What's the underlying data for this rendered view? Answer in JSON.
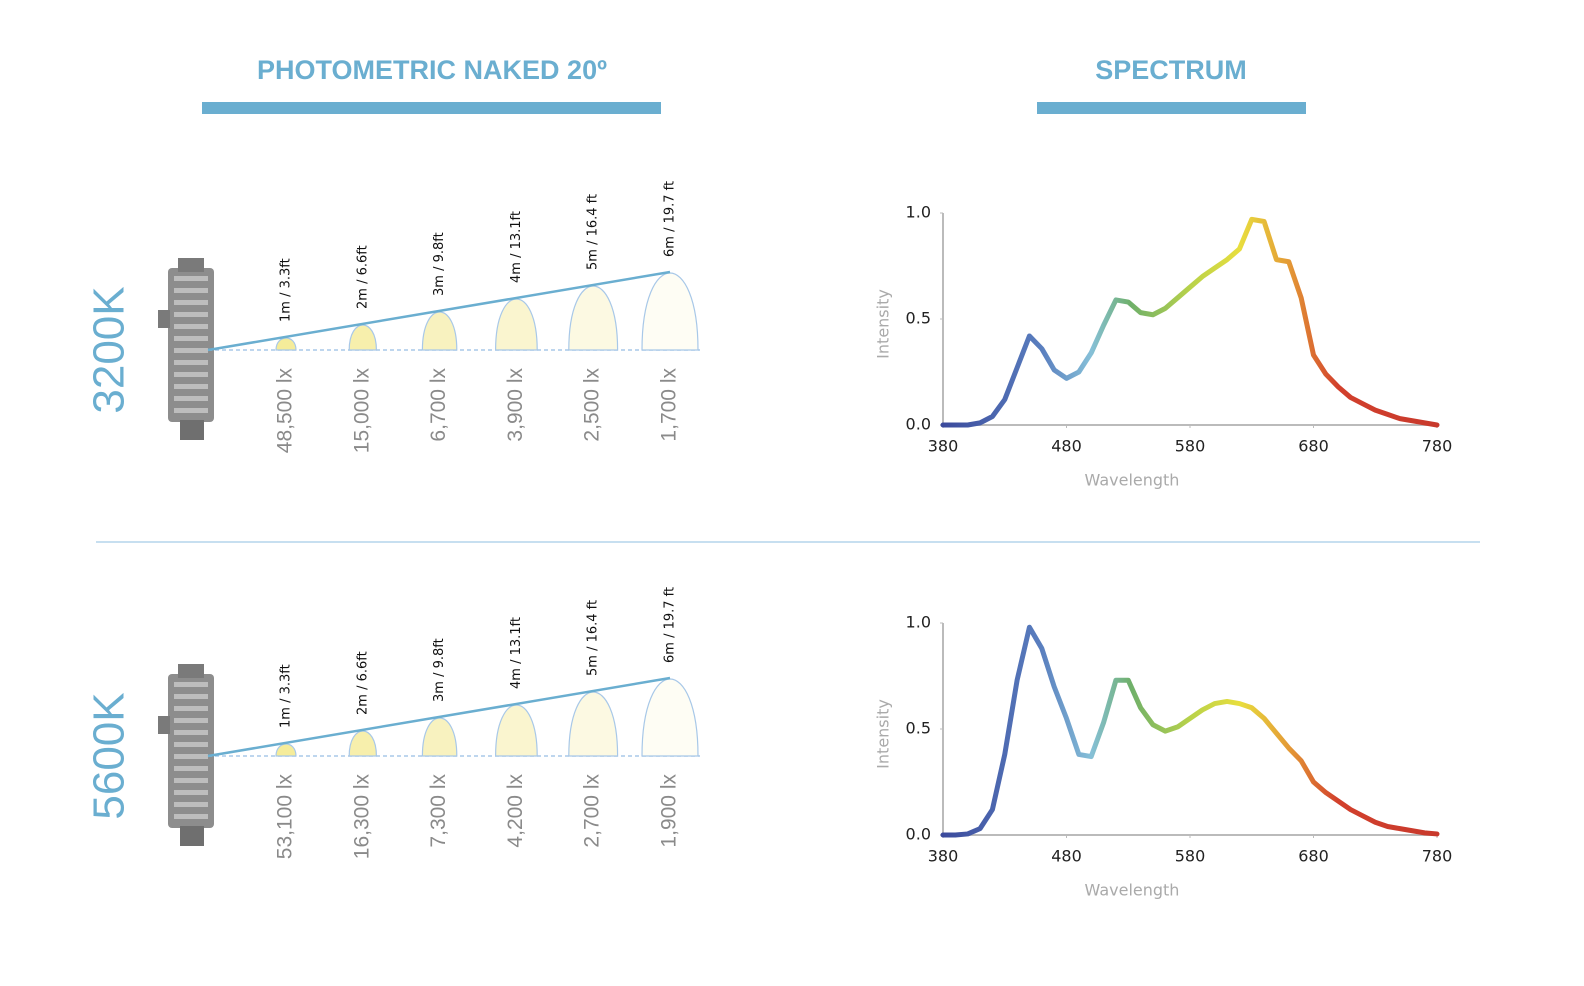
{
  "header": {
    "photometric_title": "PHOTOMETRIC NAKED 20º",
    "spectrum_title": "SPECTRUM"
  },
  "rows": [
    {
      "cct": "3200K",
      "distances": [
        "1m / 3.3ft",
        "2m / 6.6ft",
        "3m / 9.8ft",
        "4m / 13.1ft",
        "5m / 16.4 ft",
        "6m / 19.7 ft"
      ],
      "illuminance": [
        "48,500 lx",
        "15,000 lx",
        "6,700 lx",
        "3,900 lx",
        "2,500 lx",
        "1,700 lx"
      ]
    },
    {
      "cct": "5600K",
      "distances": [
        "1m / 3.3ft",
        "2m / 6.6ft",
        "3m / 9.8ft",
        "4m / 13.1ft",
        "5m / 16.4 ft",
        "6m / 19.7 ft"
      ],
      "illuminance": [
        "53,100 lx",
        "16,300 lx",
        "7,300 lx",
        "4,200 lx",
        "2,700 lx",
        "1,900 lx"
      ]
    }
  ],
  "chart_data": [
    {
      "type": "line",
      "x_label": "Wavelength",
      "y_label": "Intensity",
      "x": [
        380,
        390,
        400,
        410,
        420,
        430,
        440,
        450,
        460,
        470,
        480,
        490,
        500,
        510,
        520,
        530,
        540,
        550,
        560,
        570,
        580,
        590,
        600,
        610,
        620,
        630,
        640,
        650,
        660,
        670,
        680,
        690,
        700,
        710,
        720,
        730,
        740,
        750,
        760,
        770,
        780
      ],
      "series": [
        {
          "values": [
            0,
            0,
            0,
            0.01,
            0.04,
            0.12,
            0.27,
            0.42,
            0.36,
            0.26,
            0.22,
            0.25,
            0.34,
            0.47,
            0.59,
            0.58,
            0.53,
            0.52,
            0.55,
            0.6,
            0.65,
            0.7,
            0.74,
            0.78,
            0.83,
            0.97,
            0.96,
            0.78,
            0.77,
            0.6,
            0.33,
            0.24,
            0.18,
            0.13,
            0.1,
            0.07,
            0.05,
            0.03,
            0.02,
            0.01,
            0
          ]
        }
      ],
      "xlim": [
        380,
        780
      ],
      "ylim": [
        0,
        1
      ],
      "xticks": [
        380,
        480,
        580,
        680,
        780
      ],
      "yticks": [
        {
          "value": 0,
          "label": "0.0"
        },
        {
          "value": 0.5,
          "label": "0.5"
        },
        {
          "value": 1,
          "label": "1.0"
        }
      ]
    },
    {
      "type": "line",
      "x_label": "Wavelength",
      "y_label": "Intensity",
      "x": [
        380,
        390,
        400,
        410,
        420,
        430,
        440,
        450,
        460,
        470,
        480,
        490,
        500,
        510,
        520,
        530,
        540,
        550,
        560,
        570,
        580,
        590,
        600,
        610,
        620,
        630,
        640,
        650,
        660,
        670,
        680,
        690,
        700,
        710,
        720,
        730,
        740,
        750,
        760,
        770,
        780
      ],
      "series": [
        {
          "values": [
            0,
            0,
            0.005,
            0.03,
            0.12,
            0.38,
            0.73,
            0.98,
            0.88,
            0.7,
            0.55,
            0.38,
            0.37,
            0.53,
            0.73,
            0.73,
            0.6,
            0.52,
            0.49,
            0.51,
            0.55,
            0.59,
            0.62,
            0.63,
            0.62,
            0.6,
            0.55,
            0.48,
            0.41,
            0.35,
            0.25,
            0.2,
            0.16,
            0.12,
            0.09,
            0.06,
            0.04,
            0.03,
            0.02,
            0.01,
            0.005
          ]
        }
      ],
      "xlim": [
        380,
        780
      ],
      "ylim": [
        0,
        1
      ],
      "xticks": [
        380,
        480,
        580,
        680,
        780
      ],
      "yticks": [
        {
          "value": 0,
          "label": "0.0"
        },
        {
          "value": 0.5,
          "label": "0.5"
        },
        {
          "value": 1,
          "label": "1.0"
        }
      ]
    }
  ]
}
